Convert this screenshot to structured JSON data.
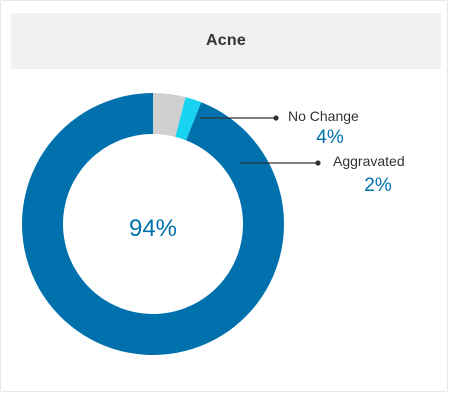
{
  "card": {
    "title": "Acne"
  },
  "colors": {
    "improved": "#0071ad",
    "no_change": "#cfcfcf",
    "aggravated": "#19d3f3",
    "value_text": "#0071ad",
    "label_text": "#333333",
    "leader": "#333333"
  },
  "chart_data": {
    "type": "pie",
    "donut": true,
    "title": "Acne",
    "slices": [
      {
        "value": 4,
        "color": "#cfcfcf"
      },
      {
        "value": 2,
        "color": "#19d3f3"
      },
      {
        "value": 94,
        "color": "#0071ad"
      }
    ],
    "center_label": "94%",
    "callouts": [
      {
        "label": "No Change",
        "value_text": "4%"
      },
      {
        "label": "Aggravated",
        "value_text": "2%"
      }
    ]
  }
}
